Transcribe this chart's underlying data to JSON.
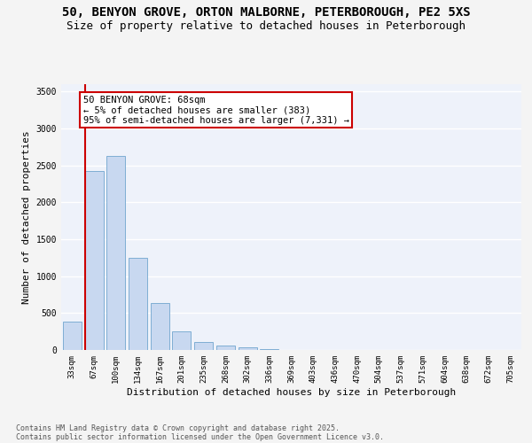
{
  "title_line1": "50, BENYON GROVE, ORTON MALBORNE, PETERBOROUGH, PE2 5XS",
  "title_line2": "Size of property relative to detached houses in Peterborough",
  "xlabel": "Distribution of detached houses by size in Peterborough",
  "ylabel": "Number of detached properties",
  "categories": [
    "33sqm",
    "67sqm",
    "100sqm",
    "134sqm",
    "167sqm",
    "201sqm",
    "235sqm",
    "268sqm",
    "302sqm",
    "336sqm",
    "369sqm",
    "403sqm",
    "436sqm",
    "470sqm",
    "504sqm",
    "537sqm",
    "571sqm",
    "604sqm",
    "638sqm",
    "672sqm",
    "705sqm"
  ],
  "values": [
    390,
    2420,
    2630,
    1250,
    640,
    255,
    105,
    55,
    35,
    15,
    5,
    0,
    0,
    0,
    0,
    0,
    0,
    0,
    0,
    0,
    0
  ],
  "bar_color": "#c8d8f0",
  "bar_edge_color": "#7faed4",
  "background_color": "#eef2fa",
  "grid_color": "#ffffff",
  "vline_color": "#cc0000",
  "annotation_text": "50 BENYON GROVE: 68sqm\n← 5% of detached houses are smaller (383)\n95% of semi-detached houses are larger (7,331) →",
  "annotation_box_color": "#cc0000",
  "ylim": [
    0,
    3600
  ],
  "yticks": [
    0,
    500,
    1000,
    1500,
    2000,
    2500,
    3000,
    3500
  ],
  "footer_line1": "Contains HM Land Registry data © Crown copyright and database right 2025.",
  "footer_line2": "Contains public sector information licensed under the Open Government Licence v3.0.",
  "fig_bg": "#f4f4f4",
  "title_fontsize": 10,
  "subtitle_fontsize": 9,
  "axis_label_fontsize": 8,
  "tick_fontsize": 6.5,
  "annotation_fontsize": 7.5,
  "footer_fontsize": 6
}
